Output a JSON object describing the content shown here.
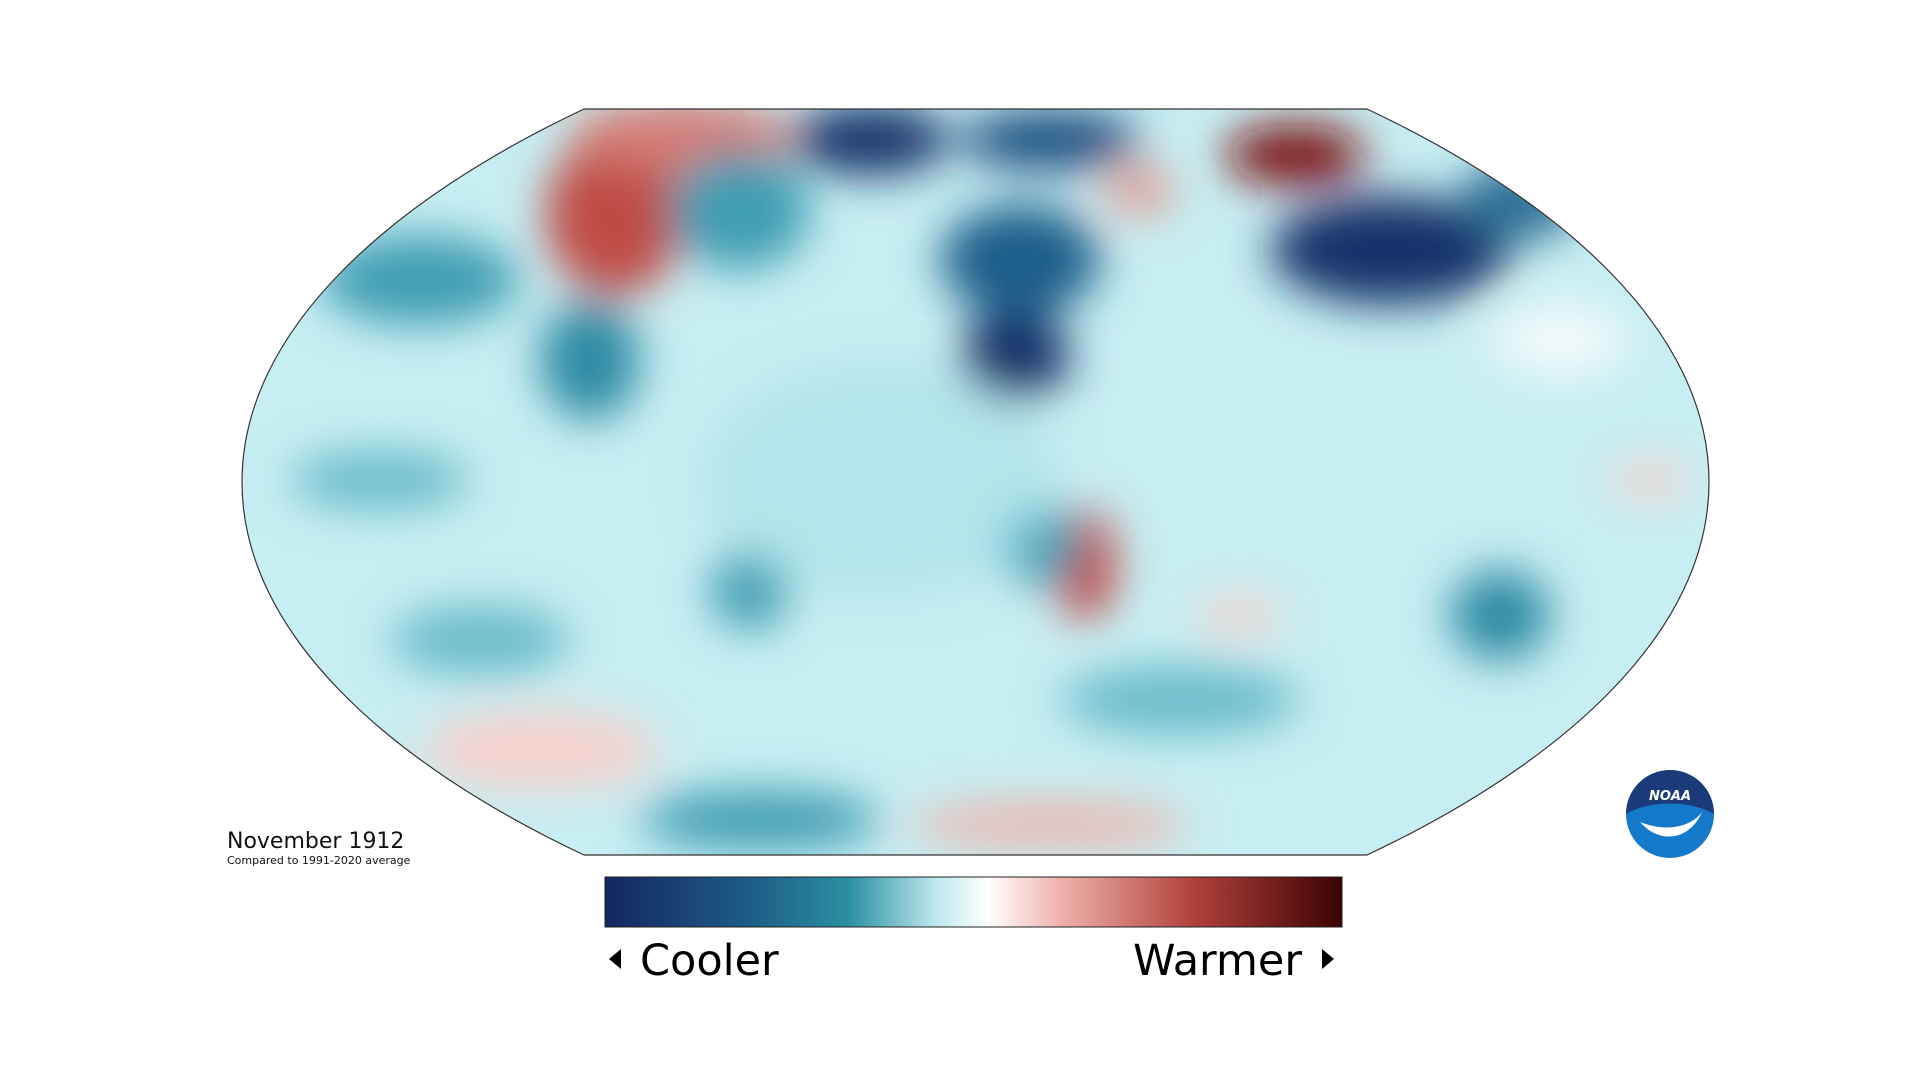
{
  "caption": {
    "title": "November 1912",
    "subtitle": "Compared to 1991-2020 average"
  },
  "legend": {
    "low_label": "Cooler",
    "high_label": "Warmer"
  },
  "logo": {
    "text": "NOAA"
  }
}
